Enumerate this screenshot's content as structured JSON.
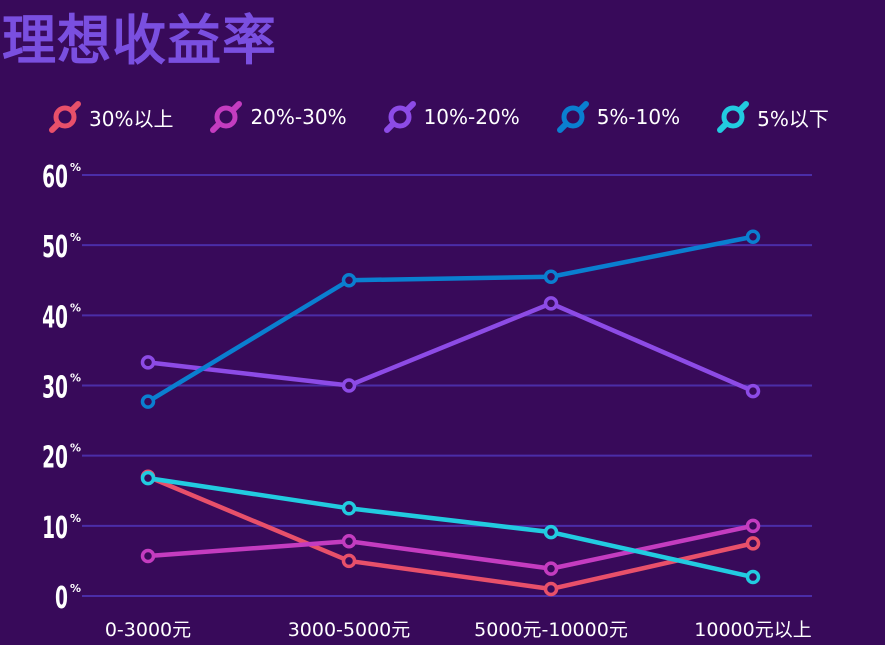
{
  "chart_data": {
    "type": "line",
    "title": "理想收益率",
    "categories": [
      "0-3000元",
      "3000-5000元",
      "5000元-10000元",
      "10000元以上"
    ],
    "ylim": [
      0,
      60
    ],
    "yticks": [
      "0",
      "10",
      "20",
      "30",
      "40",
      "50",
      "60"
    ],
    "ytick_suffix": "%",
    "grid": true,
    "legend_position": "top",
    "series": [
      {
        "name": "30%以上",
        "color": "#e8506a",
        "values": [
          17,
          5,
          1,
          7.5
        ]
      },
      {
        "name": "20%-30%",
        "color": "#c43cc0",
        "values": [
          5.7,
          7.8,
          3.9,
          10
        ]
      },
      {
        "name": "10%-20%",
        "color": "#8d4be6",
        "values": [
          33.3,
          30,
          41.7,
          29.2
        ]
      },
      {
        "name": "5%-10%",
        "color": "#0a7fd0",
        "values": [
          27.7,
          45,
          45.5,
          51.2
        ]
      },
      {
        "name": "5%以下",
        "color": "#22cbe0",
        "values": [
          16.8,
          12.5,
          9.1,
          2.7
        ]
      }
    ]
  },
  "colors": {
    "background": "#380a5a",
    "title": "#7a4fe0",
    "gridline": "#4b2da8",
    "text": "#ffffff",
    "marker_fill": "#380a5a"
  }
}
